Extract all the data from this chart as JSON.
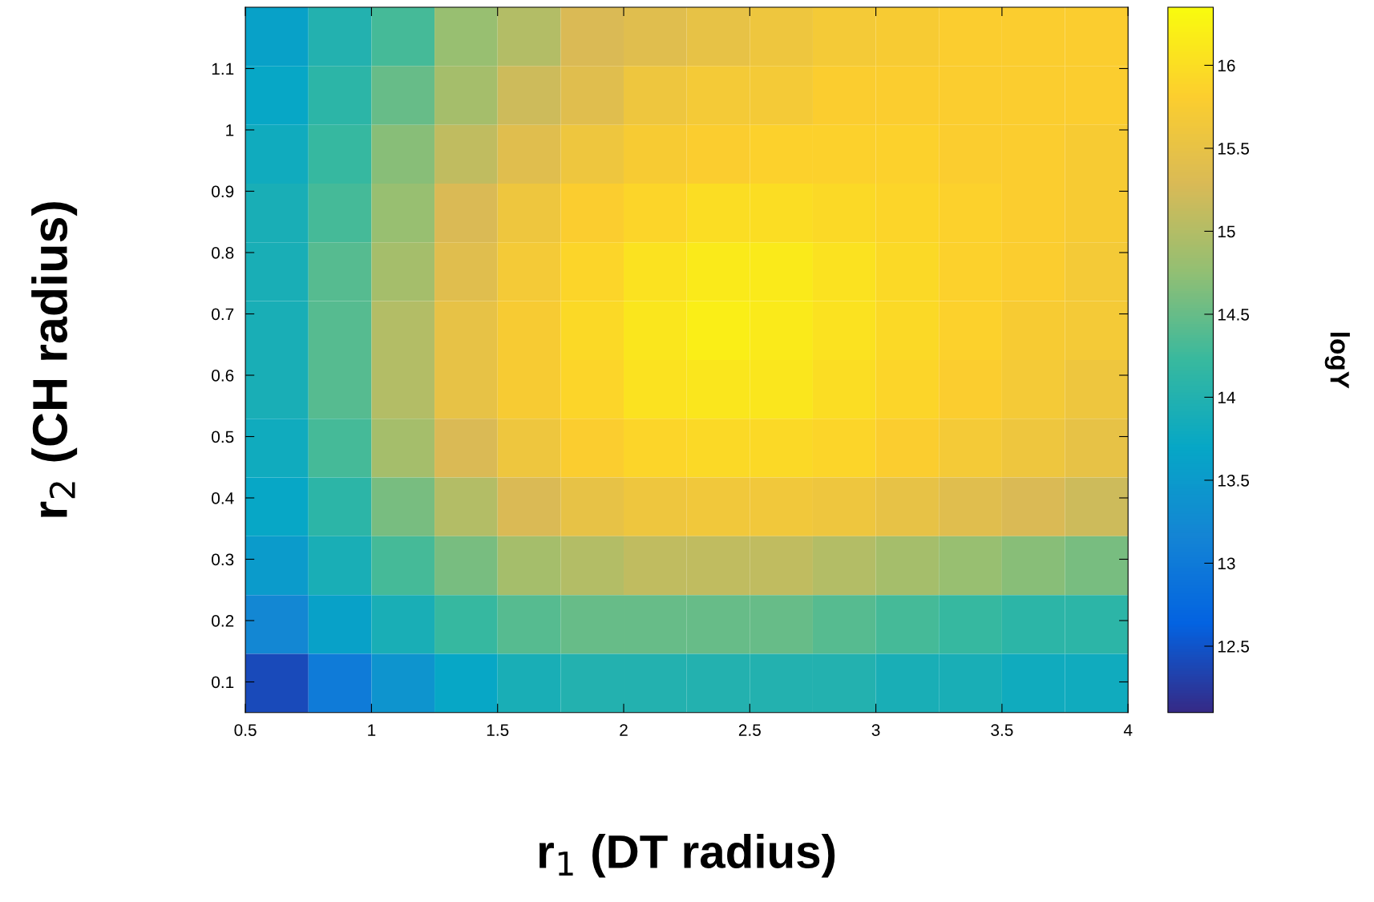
{
  "chart_data": {
    "type": "heatmap",
    "xlabel": "r$_{1}$ (DT radius)",
    "ylabel": "r$_{2}$ (CH radius)",
    "clabel": "logY",
    "xlim": [
      0.5,
      4
    ],
    "xticks": [
      0.5,
      1,
      1.5,
      2,
      2.5,
      3,
      3.5,
      4
    ],
    "ylim": [
      0.05,
      1.2
    ],
    "yticks": [
      0.1,
      0.2,
      0.3,
      0.4,
      0.5,
      0.6,
      0.7,
      0.8,
      0.9,
      1,
      1.1
    ],
    "clim": [
      12.1,
      16.35
    ],
    "cticks": [
      12.5,
      13,
      13.5,
      14,
      14.5,
      15,
      15.5,
      16
    ],
    "grid": false,
    "cells": [
      [
        13.6,
        14.0,
        14.3,
        14.8,
        15.0,
        15.3,
        15.4,
        15.5,
        15.6,
        15.7,
        15.75,
        15.8,
        15.8,
        15.8
      ],
      [
        13.7,
        14.1,
        14.5,
        14.9,
        15.2,
        15.4,
        15.6,
        15.7,
        15.7,
        15.8,
        15.8,
        15.8,
        15.8,
        15.8
      ],
      [
        13.8,
        14.2,
        14.7,
        15.1,
        15.4,
        15.6,
        15.75,
        15.8,
        15.85,
        15.85,
        15.85,
        15.8,
        15.8,
        15.75
      ],
      [
        13.9,
        14.3,
        14.8,
        15.3,
        15.6,
        15.8,
        15.9,
        16.0,
        16.0,
        15.95,
        15.9,
        15.85,
        15.8,
        15.75
      ],
      [
        13.9,
        14.4,
        14.9,
        15.4,
        15.7,
        15.9,
        16.05,
        16.15,
        16.15,
        16.05,
        15.95,
        15.85,
        15.8,
        15.7
      ],
      [
        13.9,
        14.4,
        15.0,
        15.5,
        15.75,
        15.95,
        16.1,
        16.2,
        16.15,
        16.05,
        15.95,
        15.85,
        15.75,
        15.7
      ],
      [
        13.9,
        14.4,
        15.0,
        15.5,
        15.75,
        15.9,
        16.05,
        16.1,
        16.1,
        16.0,
        15.9,
        15.8,
        15.7,
        15.6
      ],
      [
        13.8,
        14.3,
        14.9,
        15.3,
        15.6,
        15.8,
        15.9,
        15.95,
        15.95,
        15.9,
        15.8,
        15.7,
        15.6,
        15.5
      ],
      [
        13.7,
        14.1,
        14.6,
        15.0,
        15.3,
        15.5,
        15.6,
        15.65,
        15.65,
        15.6,
        15.5,
        15.4,
        15.3,
        15.2
      ],
      [
        13.5,
        13.9,
        14.3,
        14.6,
        14.9,
        15.0,
        15.1,
        15.1,
        15.1,
        15.0,
        14.9,
        14.8,
        14.7,
        14.6
      ],
      [
        13.2,
        13.6,
        13.9,
        14.2,
        14.4,
        14.5,
        14.5,
        14.5,
        14.5,
        14.4,
        14.3,
        14.2,
        14.1,
        14.1
      ],
      [
        12.4,
        13.0,
        13.4,
        13.7,
        13.9,
        14.0,
        14.0,
        14.0,
        14.0,
        14.0,
        13.9,
        13.9,
        13.8,
        13.8
      ]
    ]
  }
}
